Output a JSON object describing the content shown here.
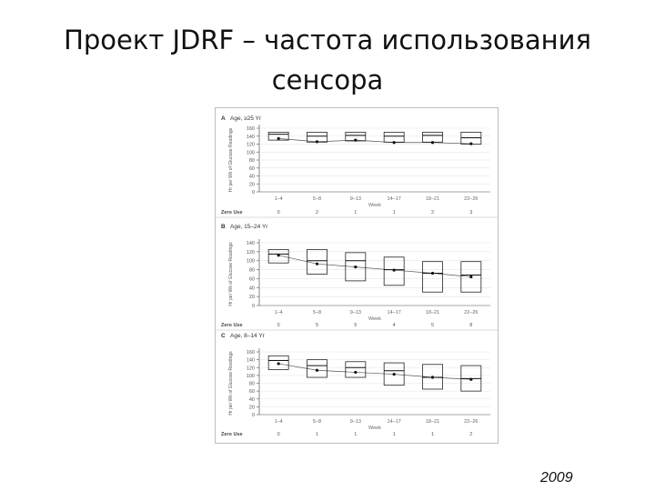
{
  "slide": {
    "title_line1": "Проект JDRF – частота использования",
    "title_line2": "сенсора",
    "year": "2009"
  },
  "chart_data": [
    {
      "type": "box",
      "panel": "A",
      "title": "Age, ≥25 Yr",
      "ylabel": "Hr per Wk of Glucose Readings",
      "xlabel": "Week",
      "ylim": [
        0,
        160
      ],
      "yticks": [
        0,
        20,
        40,
        60,
        80,
        100,
        120,
        140,
        160
      ],
      "categories": [
        "1–4",
        "5–8",
        "9–13",
        "14–17",
        "18–21",
        "22–26"
      ],
      "median": [
        145,
        140,
        142,
        140,
        142,
        136
      ],
      "q1": [
        130,
        125,
        128,
        125,
        125,
        120
      ],
      "q3": [
        150,
        150,
        150,
        150,
        150,
        150
      ],
      "mean": [
        134,
        126,
        130,
        124,
        124,
        121
      ],
      "zero_use_label": "Zero Use",
      "zero_use": [
        "0",
        "2",
        "1",
        "1",
        "2",
        "3"
      ]
    },
    {
      "type": "box",
      "panel": "B",
      "title": "Age, 15–24 Yr",
      "ylabel": "Hr per Wk of Glucose Readings",
      "xlabel": "Week",
      "ylim": [
        0,
        140
      ],
      "yticks": [
        0,
        20,
        40,
        60,
        80,
        100,
        120,
        140
      ],
      "categories": [
        "1–4",
        "5–8",
        "9–13",
        "14–17",
        "18–21",
        "22–26"
      ],
      "median": [
        115,
        100,
        100,
        80,
        72,
        68
      ],
      "q1": [
        95,
        70,
        55,
        45,
        30,
        30
      ],
      "q3": [
        125,
        125,
        118,
        108,
        98,
        98
      ],
      "mean": [
        112,
        93,
        86,
        79,
        72,
        64
      ],
      "zero_use_label": "Zero Use",
      "zero_use": [
        "0",
        "5",
        "5",
        "4",
        "5",
        "8"
      ]
    },
    {
      "type": "box",
      "panel": "C",
      "title": "Age, 8–14 Yr",
      "ylabel": "Hr per Wk of Glucose Readings",
      "xlabel": "Week",
      "ylim": [
        0,
        160
      ],
      "yticks": [
        0,
        20,
        40,
        60,
        80,
        100,
        120,
        140,
        160
      ],
      "categories": [
        "1–4",
        "5–8",
        "9–13",
        "14–17",
        "18–21",
        "22–26"
      ],
      "median": [
        138,
        125,
        120,
        112,
        95,
        92
      ],
      "q1": [
        115,
        95,
        95,
        75,
        65,
        60
      ],
      "q3": [
        150,
        140,
        135,
        132,
        128,
        125
      ],
      "mean": [
        130,
        113,
        108,
        103,
        95,
        90
      ],
      "zero_use_label": "Zero Use",
      "zero_use": [
        "0",
        "1",
        "1",
        "1",
        "1",
        "2"
      ]
    }
  ]
}
